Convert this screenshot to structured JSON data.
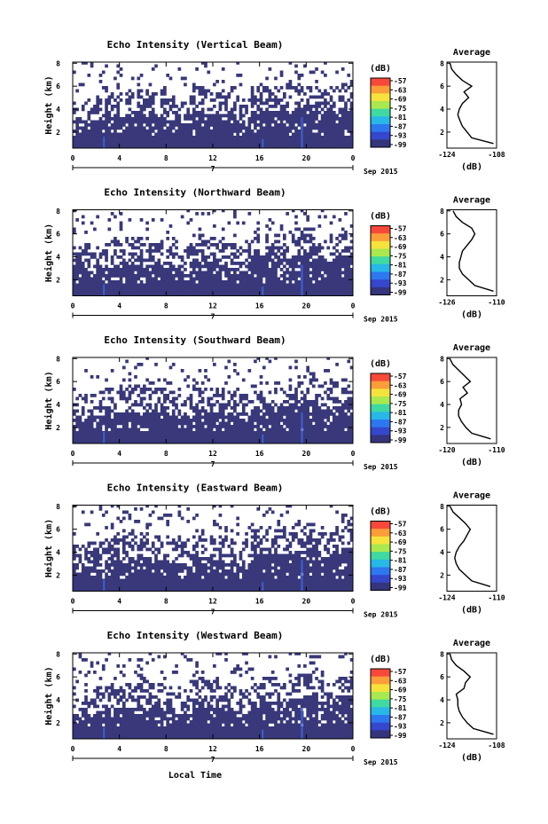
{
  "figure": {
    "x_label": "Local Time",
    "date_label": "Sep 2015",
    "day_label": "7",
    "average_title": "Average",
    "unit_label": "(dB)"
  },
  "colorbar": {
    "ticks": [
      "-57",
      "-63",
      "-69",
      "-75",
      "-81",
      "-87",
      "-93",
      "-99"
    ],
    "colors": [
      "#f8483a",
      "#fb9d38",
      "#f5e23c",
      "#a9e84e",
      "#3fd9a1",
      "#27b8e8",
      "#2d78f0",
      "#3447cd",
      "#34357c"
    ]
  },
  "chart_data": [
    {
      "type": "heatmap",
      "title": "Echo Intensity (Vertical Beam)",
      "ylabel": "Height (km)",
      "x_ticks": [
        "0",
        "4",
        "8",
        "12",
        "16",
        "20",
        "0"
      ],
      "y_ticks": [
        "2",
        "4",
        "6",
        "8"
      ],
      "xlim": [
        0,
        24
      ],
      "ylim": [
        0.6,
        8.1
      ],
      "value_range_db": [
        -99,
        -57
      ],
      "profile": {
        "title": "Average",
        "xlabel": "(dB)",
        "x_ticks": [
          "-124",
          "-108"
        ],
        "xlim": [
          -124,
          -108
        ],
        "ylim": [
          0.6,
          8.1
        ],
        "y_ticks": [
          "2",
          "4",
          "6",
          "8"
        ],
        "height_km": [
          1.0,
          1.5,
          2.0,
          2.5,
          3.0,
          3.5,
          4.0,
          4.5,
          5.0,
          5.5,
          6.0,
          6.5,
          7.0,
          7.5,
          8.0
        ],
        "values_db": [
          -109,
          -116,
          -117.5,
          -119,
          -119.8,
          -120.5,
          -120,
          -119,
          -117,
          -118.5,
          -116,
          -119,
          -121,
          -122.5,
          -123
        ]
      }
    },
    {
      "type": "heatmap",
      "title": "Echo Intensity (Northward Beam)",
      "ylabel": "Height (km)",
      "x_ticks": [
        "0",
        "4",
        "8",
        "12",
        "16",
        "20",
        "0"
      ],
      "y_ticks": [
        "2",
        "4",
        "6",
        "8"
      ],
      "xlim": [
        0,
        24
      ],
      "ylim": [
        0.6,
        8.1
      ],
      "value_range_db": [
        -99,
        -57
      ],
      "profile": {
        "title": "Average",
        "xlabel": "(dB)",
        "x_ticks": [
          "-126",
          "-110"
        ],
        "xlim": [
          -126,
          -110
        ],
        "ylim": [
          0.6,
          8.1
        ],
        "y_ticks": [
          "2",
          "4",
          "6",
          "8"
        ],
        "height_km": [
          1.0,
          1.5,
          2.0,
          2.5,
          3.0,
          3.5,
          4.0,
          4.5,
          5.0,
          5.5,
          6.0,
          6.5,
          7.0,
          7.5,
          8.0
        ],
        "values_db": [
          -111,
          -117,
          -119,
          -121,
          -122,
          -122,
          -121.5,
          -121,
          -119.5,
          -118,
          -117,
          -118,
          -121,
          -123,
          -124
        ]
      }
    },
    {
      "type": "heatmap",
      "title": "Echo Intensity (Southward Beam)",
      "ylabel": "Height (km)",
      "x_ticks": [
        "0",
        "4",
        "8",
        "12",
        "16",
        "20",
        "0"
      ],
      "y_ticks": [
        "2",
        "4",
        "6",
        "8"
      ],
      "xlim": [
        0,
        24
      ],
      "ylim": [
        0.6,
        8.1
      ],
      "value_range_db": [
        -99,
        -57
      ],
      "profile": {
        "title": "Average",
        "xlabel": "(dB)",
        "x_ticks": [
          "-120",
          "-110"
        ],
        "xlim": [
          -125,
          -108
        ],
        "ylim": [
          0.6,
          8.1
        ],
        "y_ticks": [
          "2",
          "4",
          "6",
          "8"
        ],
        "height_km": [
          1.0,
          1.5,
          2.0,
          2.5,
          3.0,
          3.5,
          4.0,
          4.5,
          5.0,
          5.5,
          6.0,
          6.5,
          7.0,
          7.5,
          8.0
        ],
        "values_db": [
          -110,
          -116.5,
          -118.5,
          -120,
          -121,
          -121,
          -120,
          -120.5,
          -118,
          -119.5,
          -117,
          -119,
          -121,
          -123,
          -124
        ]
      }
    },
    {
      "type": "heatmap",
      "title": "Echo Intensity (Eastward Beam)",
      "ylabel": "Height (km)",
      "x_ticks": [
        "0",
        "4",
        "8",
        "12",
        "16",
        "20",
        "0"
      ],
      "y_ticks": [
        "2",
        "4",
        "6",
        "8"
      ],
      "xlim": [
        0,
        24
      ],
      "ylim": [
        0.6,
        8.1
      ],
      "value_range_db": [
        -99,
        -57
      ],
      "profile": {
        "title": "Average",
        "xlabel": "(dB)",
        "x_ticks": [
          "-124",
          "-110"
        ],
        "xlim": [
          -124,
          -108
        ],
        "ylim": [
          0.6,
          8.1
        ],
        "y_ticks": [
          "2",
          "4",
          "6",
          "8"
        ],
        "height_km": [
          1.0,
          1.5,
          2.0,
          2.5,
          3.0,
          3.5,
          4.0,
          4.5,
          5.0,
          5.5,
          6.0,
          6.5,
          7.0,
          7.5,
          8.0
        ],
        "values_db": [
          -110,
          -116,
          -118,
          -120,
          -121,
          -121.5,
          -121,
          -120,
          -118.5,
          -117.5,
          -116.5,
          -118,
          -120,
          -122,
          -123
        ]
      }
    },
    {
      "type": "heatmap",
      "title": "Echo Intensity (Westward Beam)",
      "ylabel": "Height (km)",
      "x_ticks": [
        "0",
        "4",
        "8",
        "12",
        "16",
        "20",
        "0"
      ],
      "y_ticks": [
        "2",
        "4",
        "6",
        "8"
      ],
      "xlim": [
        0,
        24
      ],
      "ylim": [
        0.6,
        8.1
      ],
      "value_range_db": [
        -99,
        -57
      ],
      "profile": {
        "title": "Average",
        "xlabel": "(dB)",
        "x_ticks": [
          "-124",
          "-108"
        ],
        "xlim": [
          -124,
          -108
        ],
        "ylim": [
          0.6,
          8.1
        ],
        "y_ticks": [
          "2",
          "4",
          "6",
          "8"
        ],
        "height_km": [
          1.0,
          1.5,
          2.0,
          2.5,
          3.0,
          3.5,
          4.0,
          4.5,
          5.0,
          5.5,
          6.0,
          6.5,
          7.0,
          7.5,
          8.0
        ],
        "values_db": [
          -109,
          -115.5,
          -117.5,
          -119,
          -120,
          -120.5,
          -120.5,
          -121,
          -118.5,
          -118,
          -116.5,
          -118.5,
          -121,
          -122.5,
          -123
        ]
      }
    }
  ]
}
